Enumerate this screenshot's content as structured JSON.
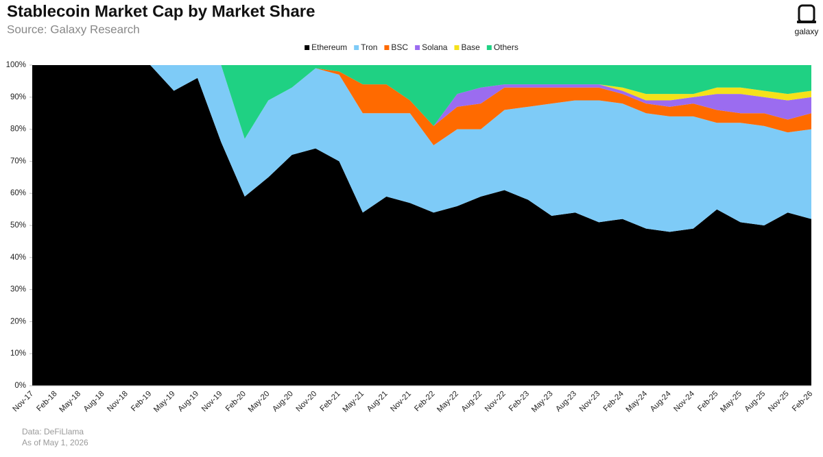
{
  "chart_data": {
    "type": "stacked_area",
    "title": "Stablecoin Market Cap by Market Share",
    "subtitle": "Source: Galaxy Research",
    "brand": "galaxy",
    "notes": [
      "Data: DeFiLlama",
      "As of May 1, 2026"
    ],
    "categories": [
      "Nov-17",
      "Feb-18",
      "May-18",
      "Aug-18",
      "Nov-18",
      "Feb-19",
      "May-19",
      "Aug-19",
      "Nov-19",
      "Feb-20",
      "May-20",
      "Aug-20",
      "Nov-20",
      "Feb-21",
      "May-21",
      "Aug-21",
      "Nov-21",
      "Feb-22",
      "May-22",
      "Aug-22",
      "Nov-22",
      "Feb-23",
      "May-23",
      "Aug-23",
      "Nov-23",
      "Feb-24",
      "May-24",
      "Aug-24",
      "Nov-24",
      "Feb-25",
      "May-25",
      "Aug-25",
      "Nov-25",
      "Feb-26"
    ],
    "series": [
      {
        "name": "Ethereum",
        "color": "#000000",
        "values": [
          100,
          100,
          100,
          100,
          100,
          100,
          92,
          96,
          76,
          59,
          65,
          72,
          74,
          70,
          54,
          59,
          57,
          54,
          56,
          59,
          61,
          58,
          53,
          54,
          51,
          52,
          49,
          48,
          49,
          55,
          51,
          50,
          54,
          52
        ]
      },
      {
        "name": "Tron",
        "color": "#7ecbf7",
        "values": [
          0,
          0,
          0,
          0,
          0,
          0,
          8,
          4,
          24,
          18,
          24,
          21,
          25,
          27,
          31,
          26,
          28,
          21,
          24,
          21,
          25,
          29,
          35,
          35,
          38,
          36,
          36,
          36,
          35,
          27,
          31,
          31,
          25,
          28
        ]
      },
      {
        "name": "BSC",
        "color": "#ff6a00",
        "values": [
          0,
          0,
          0,
          0,
          0,
          0,
          0,
          0,
          0,
          0,
          0,
          0,
          0,
          1,
          9,
          9,
          4,
          6,
          7,
          8,
          7,
          6,
          5,
          4,
          4,
          3,
          3,
          3,
          4,
          4,
          3,
          4,
          4,
          5
        ]
      },
      {
        "name": "Solana",
        "color": "#9b6cf0",
        "values": [
          0,
          0,
          0,
          0,
          0,
          0,
          0,
          0,
          0,
          0,
          0,
          0,
          0,
          0,
          0,
          0,
          0,
          0,
          4,
          5,
          1,
          1,
          1,
          1,
          1,
          1,
          1,
          2,
          2,
          5,
          6,
          5,
          6,
          5
        ]
      },
      {
        "name": "Base",
        "color": "#f5e11a",
        "values": [
          0,
          0,
          0,
          0,
          0,
          0,
          0,
          0,
          0,
          0,
          0,
          0,
          0,
          0,
          0,
          0,
          0,
          0,
          0,
          0,
          0,
          0,
          0,
          0,
          0,
          1,
          2,
          2,
          1,
          2,
          2,
          2,
          2,
          2
        ]
      },
      {
        "name": "Others",
        "color": "#1fd183",
        "values": [
          0,
          0,
          0,
          0,
          0,
          0,
          0,
          0,
          0,
          23,
          11,
          7,
          1,
          2,
          6,
          6,
          11,
          19,
          9,
          7,
          6,
          6,
          6,
          6,
          6,
          7,
          9,
          9,
          9,
          7,
          7,
          8,
          9,
          8
        ]
      }
    ],
    "ylim": [
      0,
      100
    ],
    "yticks": [
      {
        "value": 0,
        "label": "0%"
      },
      {
        "value": 10,
        "label": "10%"
      },
      {
        "value": 20,
        "label": "20%"
      },
      {
        "value": 30,
        "label": "30%"
      },
      {
        "value": 40,
        "label": "40%"
      },
      {
        "value": 50,
        "label": "50%"
      },
      {
        "value": 60,
        "label": "60%"
      },
      {
        "value": 70,
        "label": "70%"
      },
      {
        "value": 80,
        "label": "80%"
      },
      {
        "value": 90,
        "label": "90%"
      },
      {
        "value": 100,
        "label": "100%"
      }
    ],
    "legend": "top",
    "grid": false
  }
}
